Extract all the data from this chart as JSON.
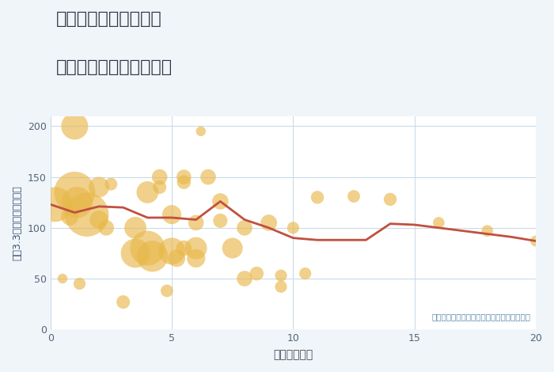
{
  "title_line1": "兵庫県宝塚市雲雀丘の",
  "title_line2": "駅距離別中古戸建て価格",
  "xlabel": "駅距離（分）",
  "ylabel": "坪（3.3㎡）単価（万円）",
  "annotation": "円の大きさは、取引のあった物件面積を示す",
  "fig_bg_color": "#f0f5fa",
  "plot_bg_color": "#ffffff",
  "scatter_color": "#e8b84b",
  "scatter_alpha": 0.65,
  "line_color": "#c05040",
  "line_width": 2.0,
  "xlim": [
    0,
    20
  ],
  "ylim": [
    0,
    210
  ],
  "xticks": [
    0,
    5,
    10,
    15,
    20
  ],
  "yticks": [
    0,
    50,
    100,
    150,
    200
  ],
  "scatter_x": [
    0.2,
    0.5,
    0.8,
    1.0,
    1.0,
    1.1,
    1.2,
    1.5,
    2.0,
    2.0,
    2.3,
    2.5,
    3.0,
    3.5,
    3.5,
    4.0,
    4.0,
    4.2,
    4.5,
    4.5,
    4.8,
    5.0,
    5.0,
    5.2,
    5.5,
    5.5,
    5.5,
    6.0,
    6.0,
    6.0,
    6.2,
    6.5,
    7.0,
    7.0,
    7.5,
    8.0,
    8.0,
    8.5,
    9.0,
    9.5,
    9.5,
    10.0,
    10.5,
    11.0,
    12.5,
    14.0,
    16.0,
    18.0,
    20.0
  ],
  "scatter_y": [
    123,
    50,
    111,
    200,
    135,
    125,
    45,
    113,
    140,
    108,
    100,
    143,
    27,
    100,
    75,
    135,
    80,
    72,
    150,
    140,
    38,
    113,
    77,
    70,
    150,
    145,
    80,
    105,
    80,
    70,
    195,
    150,
    126,
    107,
    80,
    100,
    50,
    55,
    105,
    53,
    42,
    100,
    55,
    130,
    131,
    128,
    105,
    97,
    87
  ],
  "scatter_size": [
    1000,
    80,
    250,
    600,
    1400,
    800,
    120,
    1600,
    350,
    280,
    200,
    130,
    150,
    400,
    700,
    400,
    1000,
    800,
    200,
    150,
    130,
    300,
    600,
    250,
    180,
    160,
    200,
    200,
    400,
    280,
    80,
    200,
    220,
    170,
    350,
    200,
    200,
    160,
    220,
    120,
    120,
    120,
    120,
    140,
    130,
    140,
    110,
    110,
    100
  ],
  "line_x": [
    0,
    1,
    2,
    3,
    4,
    5,
    6,
    7,
    8,
    9,
    10,
    11,
    12,
    13,
    14,
    15,
    16,
    17,
    18,
    19,
    20
  ],
  "line_y": [
    123,
    115,
    121,
    120,
    110,
    110,
    108,
    126,
    108,
    100,
    90,
    88,
    88,
    88,
    104,
    103,
    100,
    97,
    94,
    91,
    87
  ]
}
